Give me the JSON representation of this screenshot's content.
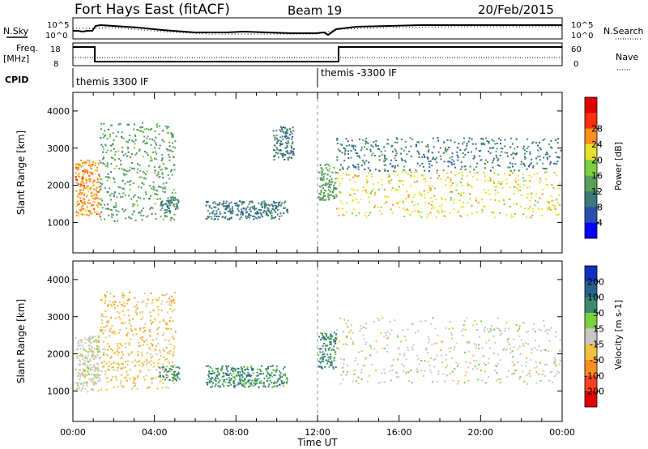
{
  "header": {
    "station": "Fort Hays East (fitACF)",
    "beam": "Beam 19",
    "date": "20/Feb/2015"
  },
  "summary_panels": {
    "nsky_label": "N.Sky",
    "nsky_ticks": [
      "10^5",
      "10^0"
    ],
    "nsearch_label": "N.Search",
    "nsearch_ticks": [
      "10^5",
      "10^0"
    ],
    "freq_label": "Freq.",
    "freq_unit": "[MHz]",
    "freq_ticks": [
      "18",
      "8"
    ],
    "nave_label": "Nave",
    "nave_ticks": [
      "60",
      "0"
    ],
    "cpid_label": "CPID",
    "cpid_segments": [
      {
        "label": "themis 3300 IF",
        "start_hour": 0,
        "end_hour": 12
      },
      {
        "label": "themis -3300 IF",
        "start_hour": 12,
        "end_hour": 24
      }
    ]
  },
  "chart_data": [
    {
      "type": "heatmap",
      "title": "",
      "ylabel": "Slant Range [km]",
      "xlabel": "",
      "ylim": [
        180,
        4500
      ],
      "yticks": [
        "1000",
        "2000",
        "3000",
        "4000"
      ],
      "xlim": [
        0,
        24
      ],
      "colorbar": {
        "label": "Power [dB]",
        "ticks": [
          "4",
          "8",
          "12",
          "16",
          "20",
          "24",
          "28"
        ],
        "colors": [
          "#0000ff",
          "#2a4fb0",
          "#3b7a78",
          "#5aa05a",
          "#7dd040",
          "#e8e030",
          "#ff9020",
          "#ff3010",
          "#e00000"
        ]
      },
      "echo_regions": [
        {
          "t0": 0.1,
          "t1": 1.3,
          "r0": 1200,
          "r1": 2700,
          "level": 24
        },
        {
          "t0": 1.3,
          "t1": 5.0,
          "r0": 1050,
          "r1": 3700,
          "level": 12
        },
        {
          "t0": 4.2,
          "t1": 5.2,
          "r0": 1300,
          "r1": 1700,
          "level": 6
        },
        {
          "t0": 6.5,
          "t1": 10.5,
          "r0": 1100,
          "r1": 1600,
          "level": 6
        },
        {
          "t0": 9.8,
          "t1": 10.8,
          "r0": 2700,
          "r1": 3600,
          "level": 8
        },
        {
          "t0": 12.0,
          "t1": 12.9,
          "r0": 1600,
          "r1": 2600,
          "level": 12
        },
        {
          "t0": 12.9,
          "t1": 23.9,
          "r0": 1150,
          "r1": 2400,
          "level": 20
        },
        {
          "t0": 12.9,
          "t1": 23.9,
          "r0": 2400,
          "r1": 3300,
          "level": 8
        }
      ]
    },
    {
      "type": "heatmap",
      "title": "",
      "ylabel": "Slant Range [km]",
      "xlabel": "Time UT",
      "ylim": [
        180,
        4500
      ],
      "yticks": [
        "1000",
        "2000",
        "3000",
        "4000"
      ],
      "xlim": [
        0,
        24
      ],
      "xticks": [
        "00:00",
        "04:00",
        "08:00",
        "12:00",
        "16:00",
        "20:00",
        "00:00"
      ],
      "colorbar": {
        "label": "Velocity [m s-1]",
        "ticks": [
          "200",
          "100",
          "50",
          "15",
          "-15",
          "-50",
          "-100",
          "-200"
        ],
        "colors": [
          "#1030c0",
          "#2a6090",
          "#3b8a70",
          "#7ad040",
          "#c8c8c0",
          "#f0c040",
          "#ff9020",
          "#ff4020",
          "#e00000"
        ]
      },
      "echo_regions": [
        {
          "t0": 0.1,
          "t1": 1.3,
          "r0": 1000,
          "r1": 2500,
          "velocity": 0
        },
        {
          "t0": 1.3,
          "t1": 5.0,
          "r0": 1050,
          "r1": 3700,
          "velocity": -40
        },
        {
          "t0": 4.2,
          "t1": 5.2,
          "r0": 1300,
          "r1": 1700,
          "velocity": 40
        },
        {
          "t0": 6.5,
          "t1": 10.5,
          "r0": 1100,
          "r1": 1700,
          "velocity": 40
        },
        {
          "t0": 12.0,
          "t1": 12.9,
          "r0": 1600,
          "r1": 2600,
          "velocity": 40
        },
        {
          "t0": 12.9,
          "t1": 23.9,
          "r0": 1200,
          "r1": 3000,
          "velocity": 0
        }
      ]
    }
  ]
}
